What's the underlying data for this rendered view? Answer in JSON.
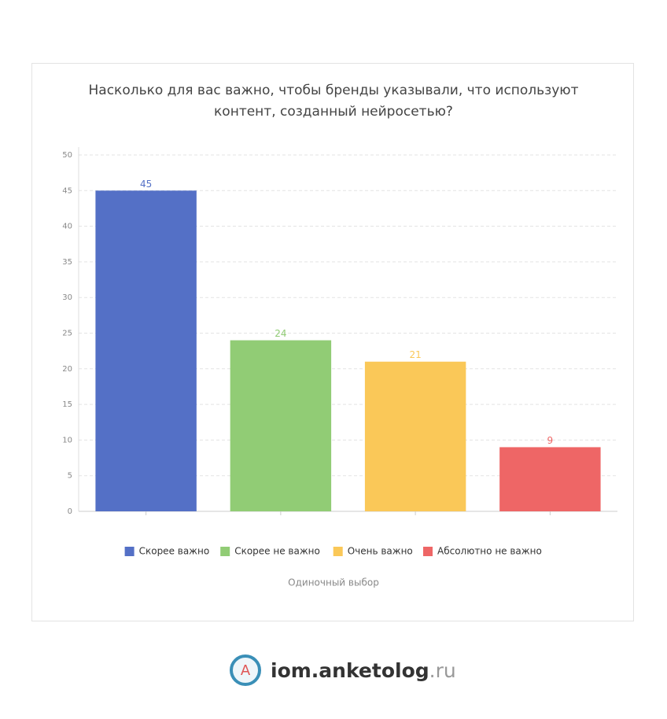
{
  "chart_data": {
    "type": "bar",
    "title": "Насколько для вас важно, чтобы бренды указывали, что используют контент, созданный нейросетью?",
    "categories": [
      null,
      null,
      null,
      null
    ],
    "series": [
      {
        "name": "Скорее важно",
        "color": "#5470c6",
        "values": [
          45,
          null,
          null,
          null
        ]
      },
      {
        "name": "Скорее не важно",
        "color": "#91cc75",
        "values": [
          null,
          24,
          null,
          null
        ]
      },
      {
        "name": "Очень важно",
        "color": "#fac858",
        "values": [
          null,
          null,
          21,
          null
        ]
      },
      {
        "name": "Абсолютно не важно",
        "color": "#ee6666",
        "values": [
          null,
          null,
          null,
          9
        ]
      }
    ],
    "ylim": [
      0,
      50
    ],
    "yticks": [
      0,
      5,
      10,
      15,
      20,
      25,
      30,
      35,
      40,
      45,
      50
    ],
    "grid": true,
    "legend": "bottom",
    "note": "Одиночный выбор"
  },
  "footer": {
    "logo_icon": "A",
    "logo": "iom.anketolog",
    "logo_suffix": ".ru"
  }
}
